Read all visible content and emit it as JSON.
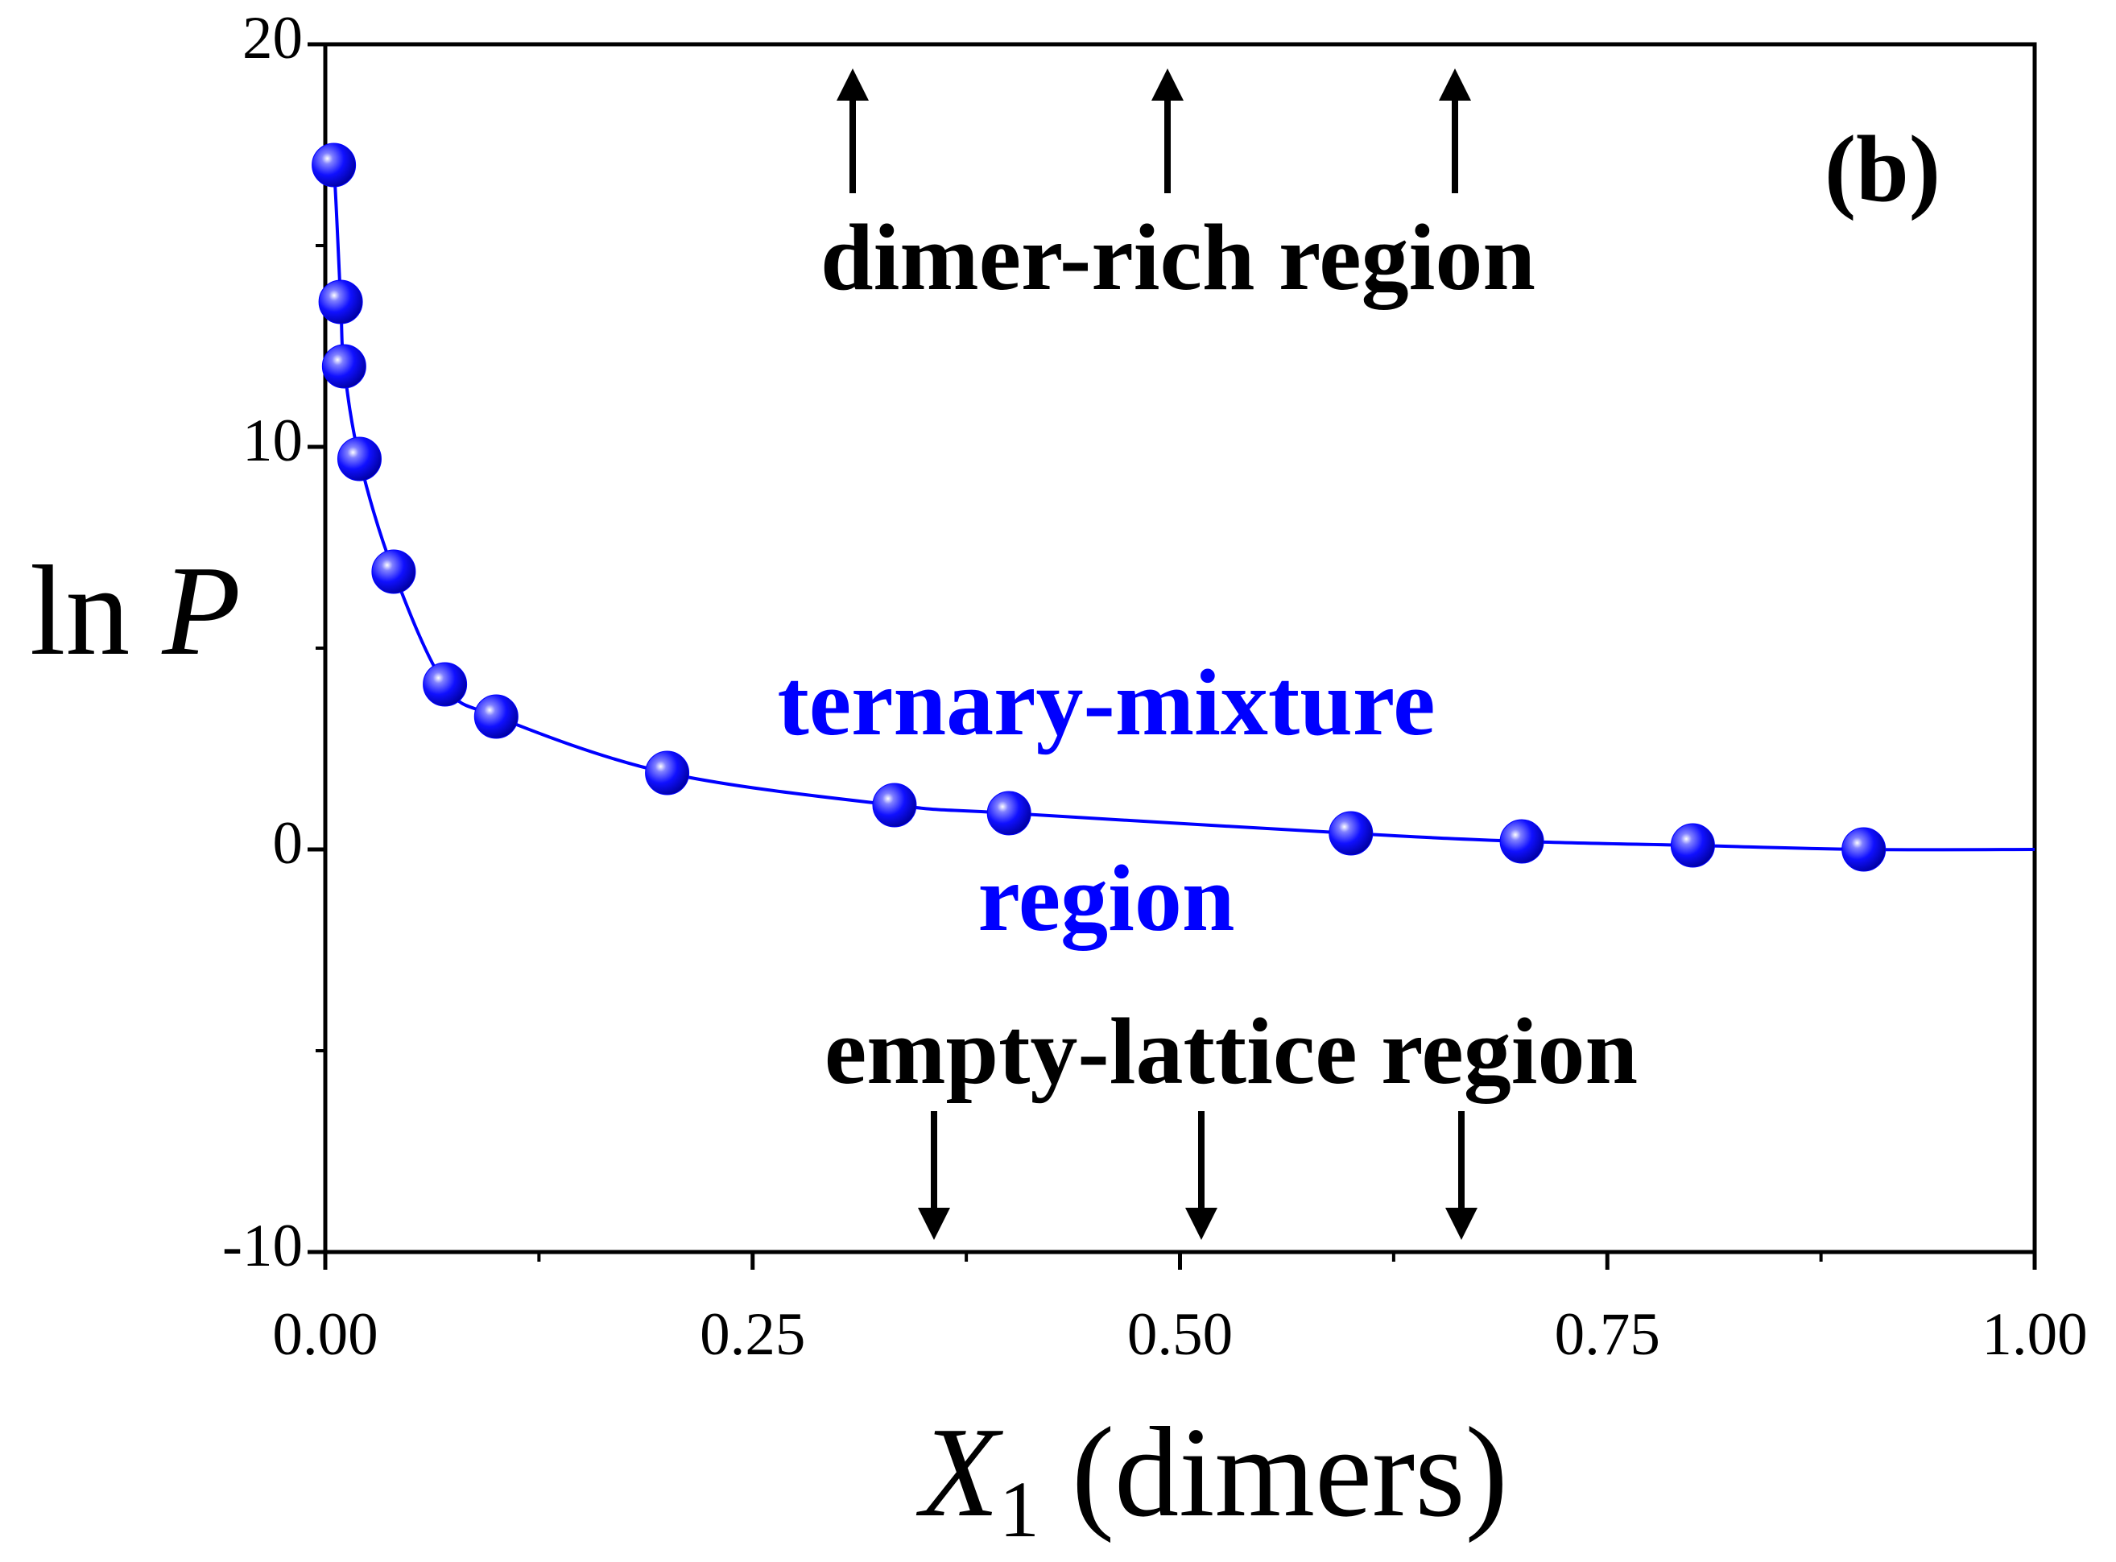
{
  "chart_data": {
    "type": "scatter",
    "ylabel": [
      "ln ",
      "P"
    ],
    "xlabel": [
      "X",
      "1",
      " (dimers)"
    ],
    "annotations": [
      "(b)",
      "dimer-rich region",
      "ternary-mixture",
      "region",
      "empty-lattice region"
    ],
    "xlim": [
      0,
      1
    ],
    "ylim": [
      -10,
      20
    ],
    "xticks": [
      {
        "value": 0,
        "label": "0.00"
      },
      {
        "value": 0.25,
        "label": "0.25"
      },
      {
        "value": 0.5,
        "label": "0.50"
      },
      {
        "value": 0.75,
        "label": "0.75"
      },
      {
        "value": 1,
        "label": "1.00"
      }
    ],
    "xminorticks": [
      0.125,
      0.375,
      0.625,
      0.875
    ],
    "yticks": [
      -10,
      0,
      10,
      20
    ],
    "yminorticks": [
      -5,
      5,
      15
    ],
    "series": [
      {
        "type": "line",
        "color": "#0000ff",
        "x": [
          0.002,
          0.005,
          0.009,
          0.011,
          0.02,
          0.04,
          0.07,
          0.1,
          0.2,
          0.333,
          0.4,
          0.6,
          0.7,
          0.8,
          0.9,
          1.0
        ],
        "values": [
          17.5,
          17.0,
          13.6,
          12.0,
          9.7,
          6.9,
          4.1,
          3.3,
          1.9,
          1.1,
          0.9,
          0.4,
          0.2,
          0.1,
          0.0,
          0.0
        ]
      },
      {
        "type": "scatter",
        "color": "#0000ff",
        "x": [
          0.005,
          0.009,
          0.011,
          0.02,
          0.04,
          0.07,
          0.1,
          0.2,
          0.333,
          0.4,
          0.6,
          0.7,
          0.8,
          0.9
        ],
        "values": [
          17.0,
          13.6,
          12.0,
          9.7,
          6.9,
          4.1,
          3.3,
          1.9,
          1.1,
          0.9,
          0.4,
          0.2,
          0.1,
          0.0
        ]
      }
    ]
  }
}
